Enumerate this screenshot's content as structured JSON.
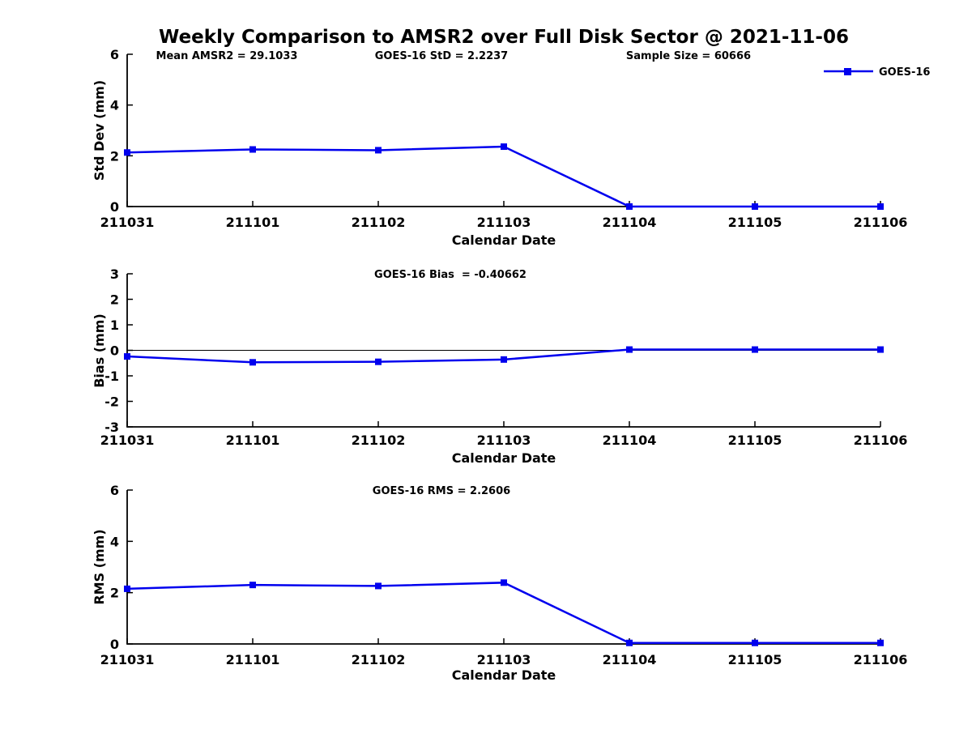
{
  "title": "Weekly Comparison to AMSR2 over Full Disk Sector @ 2021-11-06",
  "colors": {
    "line": "#0000EE",
    "text": "#000000",
    "background": "#FFFFFF",
    "axis": "#000000"
  },
  "legend": {
    "label": "GOES-16",
    "position": "upper right",
    "marker": "filled-square"
  },
  "chart_data": [
    {
      "type": "line",
      "title": "",
      "categories": [
        "211031",
        "211101",
        "211102",
        "211103",
        "211104",
        "211105",
        "211106"
      ],
      "series": [
        {
          "name": "GOES-16",
          "values": [
            2.13,
            2.25,
            2.22,
            2.36,
            0.0,
            0.0,
            0.0
          ],
          "marker": "square"
        }
      ],
      "xlabel": "Calendar Date",
      "ylabel": "Std Dev (mm)",
      "ylim": [
        0,
        6
      ],
      "yticks": [
        0,
        2,
        4,
        6
      ],
      "grid": false,
      "zero_line": false,
      "annotations": [
        {
          "text": "Mean AMSR2 = 29.1033",
          "ax_frac_x": 0.13
        },
        {
          "text": "GOES-16 StD = 2.2237",
          "ax_frac_x": 0.42
        },
        {
          "text": "Sample Size = 60666",
          "ax_frac_x": 0.745
        }
      ]
    },
    {
      "type": "line",
      "title": "",
      "categories": [
        "211031",
        "211101",
        "211102",
        "211103",
        "211104",
        "211105",
        "211106"
      ],
      "series": [
        {
          "name": "GOES-16",
          "values": [
            -0.24,
            -0.47,
            -0.45,
            -0.36,
            0.03,
            0.03,
            0.03
          ],
          "marker": "square"
        }
      ],
      "xlabel": "Calendar Date",
      "ylabel": "Bias (mm)",
      "ylim": [
        -3,
        3
      ],
      "yticks": [
        -3,
        -2,
        -1,
        0,
        1,
        2,
        3
      ],
      "grid": false,
      "zero_line": true,
      "annotations": [
        {
          "text": "GOES-16 Bias  = -0.40662",
          "ax_frac_x": 0.43
        }
      ]
    },
    {
      "type": "line",
      "title": "",
      "categories": [
        "211031",
        "211101",
        "211102",
        "211103",
        "211104",
        "211105",
        "211106"
      ],
      "series": [
        {
          "name": "GOES-16",
          "values": [
            2.15,
            2.3,
            2.26,
            2.39,
            0.04,
            0.04,
            0.04
          ],
          "marker": "square"
        }
      ],
      "xlabel": "Calendar Date",
      "ylabel": "RMS (mm)",
      "ylim": [
        0,
        6
      ],
      "yticks": [
        0,
        2,
        4,
        6
      ],
      "grid": false,
      "zero_line": false,
      "annotations": [
        {
          "text": "GOES-16 RMS = 2.2606",
          "ax_frac_x": 0.42
        }
      ]
    }
  ]
}
